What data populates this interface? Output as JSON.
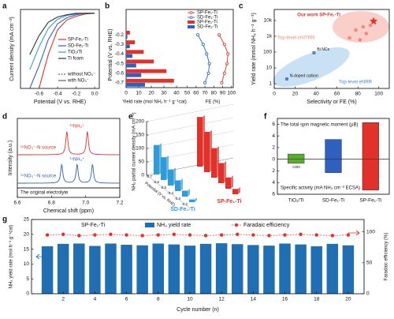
{
  "chart_data": [
    {
      "label": "a",
      "type": "line",
      "xlabel": "Potential (V vs. RHE)",
      "ylabel": "Current density (mA cm⁻²)",
      "xlim": [
        -0.8,
        0.05
      ],
      "xticks": [
        -0.6,
        -0.4,
        -0.2,
        {
          "value": 0,
          "label": "0.0"
        }
      ],
      "ylim": [
        -100,
        5
      ],
      "x": [
        -0.7,
        -0.6,
        -0.5,
        -0.4,
        -0.3,
        -0.2,
        -0.1,
        0
      ],
      "series": [
        {
          "name": "SP-Fe₁-Ti",
          "color": "#e0312a",
          "values": [
            null,
            -100,
            -55,
            -22,
            -9,
            -4,
            -1,
            0
          ]
        },
        {
          "name": "SD-Fe₁-Ti",
          "color": "#2f5fbf",
          "values": [
            -100,
            -70,
            -35,
            -14,
            -6,
            -2,
            0,
            0
          ]
        },
        {
          "name": "TiO₂/Ti",
          "color": "#3a9bd9",
          "values": [
            -75,
            -45,
            -20,
            -8,
            -3,
            -1,
            0,
            0
          ]
        },
        {
          "name": "Ti foam",
          "color": "#333333",
          "values": [
            -55,
            -30,
            -12,
            -5,
            -2,
            0,
            0,
            0
          ]
        }
      ],
      "line_styles": [
        "without NO₃⁻",
        "with NO₃⁻"
      ]
    },
    {
      "label": "b",
      "type": "hbar_line",
      "ylabel": "Potential (V vs. RHE)",
      "categories": [
        "-0.2",
        "-0.3",
        "-0.4",
        "-0.5",
        "-0.6",
        "-0.7"
      ],
      "xlabel": "Yield rate (mol NH₃ h⁻¹ g⁻¹cat)",
      "x2label": "FE (%)",
      "xlim": [
        0,
        45
      ],
      "xticks": [
        0,
        10,
        20,
        30,
        40
      ],
      "x2lim": [
        45,
        102
      ],
      "x2ticks": [
        50,
        60,
        70,
        80,
        90,
        100
      ],
      "series": [
        {
          "name": "SP-Fe₁-Ti",
          "kind": "line",
          "axis": "x2",
          "color": "#e0312a",
          "values": [
            86,
            92,
            96,
            95,
            92,
            89
          ]
        },
        {
          "name": "SD-Fe₁-Ti",
          "kind": "line",
          "axis": "x2",
          "color": "#2f5fbf",
          "values": [
            62,
            68,
            72,
            75,
            74,
            70
          ]
        },
        {
          "name": "SP-Fe₁-Ti",
          "kind": "bar",
          "color": "#e0312a",
          "values": [
            3,
            7,
            14,
            22,
            32,
            38
          ]
        },
        {
          "name": "SD-Fe₁-Ti",
          "kind": "bar",
          "color": "#2f5fbf",
          "values": [
            1,
            3,
            5,
            8,
            12,
            15
          ]
        }
      ]
    },
    {
      "label": "c",
      "type": "scatter",
      "log_y": true,
      "xlabel": "Selectivity or FE (%)",
      "ylabel": "Yield rate (mmol NH₃ h⁻¹ g⁻¹)",
      "xlim": [
        0,
        110
      ],
      "xticks": [
        0,
        20,
        40,
        60,
        80,
        100
      ],
      "ylim": [
        0.5,
        50000
      ],
      "yticks": [
        1,
        10,
        100,
        {
          "value": 1000,
          "label": "1k"
        },
        {
          "value": 10000,
          "label": "10k"
        }
      ],
      "series": [
        {
          "name": "Our work SP-Fe₁-Ti",
          "color": "#e0312a",
          "marker": "star",
          "x": [
            95
          ],
          "values": [
            9000
          ]
        },
        {
          "name": "Top-level eNITRR",
          "color": "#f08a7a",
          "marker": "circle",
          "x": [
            78,
            85,
            88,
            92,
            72,
            82
          ],
          "values": [
            2500,
            4000,
            1500,
            5000,
            800,
            600
          ]
        },
        {
          "name": "Top-level eNRR",
          "color": "#4a86c8",
          "marker": "square",
          "x": [
            38,
            12
          ],
          "values": [
            90,
            2
          ]
        }
      ],
      "annotations": [
        "Bi NCs",
        "N-doped carbon"
      ]
    },
    {
      "label": "d",
      "type": "spectrum",
      "xlabel": "Chemical shift (ppm)",
      "ylabel": "Intensity (a.u.)",
      "xlim": [
        6.6,
        7.2
      ],
      "xticks": [
        6.6,
        6.8,
        {
          "value": 7,
          "label": "7.0"
        },
        7.2
      ],
      "series": [
        {
          "name": "¹⁵NO₃⁻-N source",
          "color": "#e0312a",
          "peak_label": "¹⁵NH₄⁺",
          "peaks": [
            6.89,
            7.01
          ]
        },
        {
          "name": "¹⁴NO₃⁻-N source",
          "color": "#2f5fbf",
          "peak_label": "¹⁴NH₄⁺",
          "peaks": [
            6.86,
            6.95,
            7.04
          ]
        },
        {
          "name": "The original electrolyte",
          "color": "#222222",
          "peaks": []
        }
      ]
    },
    {
      "label": "e",
      "type": "bar3d",
      "zlabel": "NH₃ partial current density (mA cm⁻²)",
      "xlabel": "Potential (V vs. RHE)",
      "categories": [
        "-0.2",
        "-0.3",
        "-0.4",
        "-0.5",
        "-0.6",
        "-0.7"
      ],
      "zlim": [
        0,
        200
      ],
      "zticks": [
        0,
        50,
        100,
        150,
        200
      ],
      "series": [
        {
          "name": "SD-Fe₁-Ti",
          "color": "#2f9bd9",
          "values": [
            10,
            22,
            40,
            60,
            85,
            110
          ]
        },
        {
          "name": "SP-Fe₁-Ti",
          "color": "#e0312a",
          "values": [
            20,
            42,
            75,
            110,
            150,
            185
          ]
        }
      ]
    },
    {
      "label": "f",
      "type": "bar_diverging",
      "categories": [
        "TiO₂/Ti",
        "SD-Fe₁-Ti",
        "SP-Fe₁-Ti"
      ],
      "colors": [
        "#5aab2f",
        "#2f5fbf",
        "#e0312a"
      ],
      "ylim": [
        -6,
        7
      ],
      "yticks": [
        {
          "value": -6,
          "label": "6"
        },
        {
          "value": -4,
          "label": "4"
        },
        {
          "value": -2,
          "label": "2"
        },
        0,
        2,
        4,
        6
      ],
      "series": [
        {
          "name": "The total spin magnetic moment (μB)",
          "values": [
            0.9,
            3.4,
            6.3
          ]
        },
        {
          "name": "Specific activity (mA NH₃ cm⁻² ECSA)",
          "values": [
            -0.7,
            -2.3,
            -5.3
          ]
        }
      ],
      "annotations": [
        "×200"
      ]
    },
    {
      "label": "g",
      "type": "bar_line",
      "subtitle": "SP-Fe₁-Ti",
      "xlabel": "Cycle number (n)",
      "ylabel": "NH₃ yield rate (mol h⁻¹ g⁻¹cat)",
      "y2label": "Faradaic efficiency (%)",
      "x": [
        1,
        2,
        3,
        4,
        5,
        6,
        7,
        8,
        9,
        10,
        11,
        12,
        13,
        14,
        15,
        16,
        17,
        18,
        19,
        20
      ],
      "xlim": [
        0,
        21
      ],
      "xticks": [
        2,
        4,
        6,
        8,
        10,
        12,
        14,
        16,
        18,
        20
      ],
      "ylim": [
        0,
        25
      ],
      "yticks": [
        0,
        5,
        10,
        15,
        20,
        25
      ],
      "y2lim": [
        0,
        120
      ],
      "y2ticks": [
        0,
        50,
        100
      ],
      "series": [
        {
          "name": "NH₃ yield rate",
          "color": "#1f6fb2",
          "values": [
            16.0,
            16.8,
            16.9,
            16.1,
            16.9,
            16.5,
            16.3,
            16.9,
            16.6,
            16.2,
            16.8,
            17.0,
            16.7,
            16.4,
            16.2,
            16.9,
            16.6,
            16.0,
            16.8,
            16.3
          ]
        },
        {
          "name": "Faradaic efficiency",
          "color": "#e0312a",
          "axis": "y2",
          "values": [
            95,
            96,
            94,
            95,
            96,
            95,
            94,
            95,
            96,
            95,
            94,
            95,
            96,
            95,
            94,
            95,
            96,
            95,
            94,
            95
          ]
        }
      ]
    }
  ]
}
